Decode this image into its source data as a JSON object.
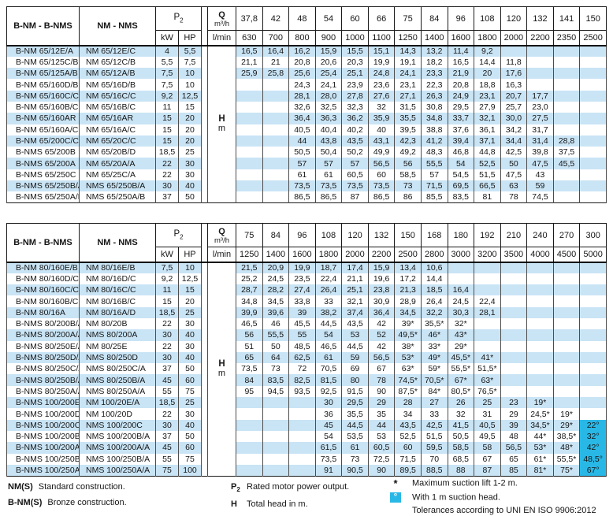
{
  "colors": {
    "row_band": "#c9e4f5",
    "suction_head_highlight": "#29b8e6"
  },
  "tables": [
    {
      "header": {
        "col1": "B-NM - B-NMS",
        "col2": "NM - NMS",
        "p2_main": "P",
        "p2_sub": "2",
        "kw": "kW",
        "hp": "HP",
        "q_label": "Q",
        "q_unit": "m³/h",
        "lmin": "l/min",
        "h_label": "H",
        "h_unit": "m",
        "flow_m3h": [
          "37,8",
          "42",
          "48",
          "54",
          "60",
          "66",
          "75",
          "84",
          "96",
          "108",
          "120",
          "132",
          "141",
          "150"
        ],
        "flow_lmin": [
          "630",
          "700",
          "800",
          "900",
          "1000",
          "1100",
          "1250",
          "1400",
          "1600",
          "1800",
          "2000",
          "2200",
          "2350",
          "2500"
        ]
      },
      "rows": [
        {
          "bnm": "B-NM 65/12E/A",
          "nm": "NM 65/12E/C",
          "kw": "4",
          "hp": "5,5",
          "values": [
            "16,5",
            "16,4",
            "16,2",
            "15,9",
            "15,5",
            "15,1",
            "14,3",
            "13,2",
            "11,4",
            "9,2",
            "",
            "",
            "",
            ""
          ]
        },
        {
          "bnm": "B-NM 65/125C/B",
          "nm": "NM 65/12C/B",
          "kw": "5,5",
          "hp": "7,5",
          "values": [
            "21,1",
            "21",
            "20,8",
            "20,6",
            "20,3",
            "19,9",
            "19,1",
            "18,2",
            "16,5",
            "14,4",
            "11,8",
            "",
            "",
            ""
          ]
        },
        {
          "bnm": "B-NM 65/125A/B",
          "nm": "NM 65/12A/B",
          "kw": "7,5",
          "hp": "10",
          "values": [
            "25,9",
            "25,8",
            "25,6",
            "25,4",
            "25,1",
            "24,8",
            "24,1",
            "23,3",
            "21,9",
            "20",
            "17,6",
            "",
            "",
            ""
          ]
        },
        {
          "bnm": "B-NM 65/160D/B",
          "nm": "NM 65/16D/B",
          "kw": "7,5",
          "hp": "10",
          "values": [
            "",
            "",
            "24,3",
            "24,1",
            "23,9",
            "23,6",
            "23,1",
            "22,3",
            "20,8",
            "18,8",
            "16,3",
            "",
            "",
            ""
          ]
        },
        {
          "bnm": "B-NM 65/160C/C",
          "nm": "NM 65/16C/C",
          "kw": "9,2",
          "hp": "12,5",
          "values": [
            "",
            "",
            "28,1",
            "28,0",
            "27,8",
            "27,6",
            "27,1",
            "26,3",
            "24,9",
            "23,1",
            "20,7",
            "17,7",
            "",
            ""
          ]
        },
        {
          "bnm": "B-NM 65/160B/C",
          "nm": "NM 65/16B/C",
          "kw": "11",
          "hp": "15",
          "values": [
            "",
            "",
            "32,6",
            "32,5",
            "32,3",
            "32",
            "31,5",
            "30,8",
            "29,5",
            "27,9",
            "25,7",
            "23,0",
            "",
            ""
          ]
        },
        {
          "bnm": "B-NM 65/160AR",
          "nm": "NM 65/16AR",
          "kw": "15",
          "hp": "20",
          "values": [
            "",
            "",
            "36,4",
            "36,3",
            "36,2",
            "35,9",
            "35,5",
            "34,8",
            "33,7",
            "32,1",
            "30,0",
            "27,5",
            "",
            ""
          ]
        },
        {
          "bnm": "B-NM 65/160A/C",
          "nm": "NM 65/16A/C",
          "kw": "15",
          "hp": "20",
          "values": [
            "",
            "",
            "40,5",
            "40,4",
            "40,2",
            "40",
            "39,5",
            "38,8",
            "37,6",
            "36,1",
            "34,2",
            "31,7",
            "",
            ""
          ]
        },
        {
          "bnm": "B-NM 65/200C/C",
          "nm": "NM 65/20C/C",
          "kw": "15",
          "hp": "20",
          "values": [
            "",
            "",
            "44",
            "43,8",
            "43,5",
            "43,1",
            "42,3",
            "41,2",
            "39,4",
            "37,1",
            "34,4",
            "31,4",
            "28,8",
            ""
          ]
        },
        {
          "bnm": "B-NMS 65/200B",
          "nm": "NM 65/20B/D",
          "kw": "18,5",
          "hp": "25",
          "values": [
            "",
            "",
            "50,5",
            "50,4",
            "50,2",
            "49,9",
            "49,2",
            "48,3",
            "46,8",
            "44,8",
            "42,5",
            "39,8",
            "37,5",
            ""
          ]
        },
        {
          "bnm": "B-NMS 65/200A",
          "nm": "NM 65/20A/A",
          "kw": "22",
          "hp": "30",
          "values": [
            "",
            "",
            "57",
            "57",
            "57",
            "56,5",
            "56",
            "55,5",
            "54",
            "52,5",
            "50",
            "47,5",
            "45,5",
            ""
          ]
        },
        {
          "bnm": "B-NMS 65/250C",
          "nm": "NM 65/25C/A",
          "kw": "22",
          "hp": "30",
          "values": [
            "",
            "",
            "61",
            "61",
            "60,5",
            "60",
            "58,5",
            "57",
            "54,5",
            "51,5",
            "47,5",
            "43",
            "",
            ""
          ]
        },
        {
          "bnm": "B-NMS 65/250B/A",
          "nm": "NMS 65/250B/A",
          "kw": "30",
          "hp": "40",
          "values": [
            "",
            "",
            "73,5",
            "73,5",
            "73,5",
            "73,5",
            "73",
            "71,5",
            "69,5",
            "66,5",
            "63",
            "59",
            "",
            ""
          ]
        },
        {
          "bnm": "B-NMS 65/250A/B",
          "nm": "NMS 65/250A/B",
          "kw": "37",
          "hp": "50",
          "values": [
            "",
            "",
            "86,5",
            "86,5",
            "87",
            "86,5",
            "86",
            "85,5",
            "83,5",
            "81",
            "78",
            "74,5",
            "",
            ""
          ]
        }
      ]
    },
    {
      "header": {
        "col1": "B-NM - B-NMS",
        "col2": "NM - NMS",
        "p2_main": "P",
        "p2_sub": "2",
        "kw": "kW",
        "hp": "HP",
        "q_label": "Q",
        "q_unit": "m³/h",
        "lmin": "l/min",
        "h_label": "H",
        "h_unit": "m",
        "flow_m3h": [
          "75",
          "84",
          "96",
          "108",
          "120",
          "132",
          "150",
          "168",
          "180",
          "192",
          "210",
          "240",
          "270",
          "300"
        ],
        "flow_lmin": [
          "1250",
          "1400",
          "1600",
          "1800",
          "2000",
          "2200",
          "2500",
          "2800",
          "3000",
          "3200",
          "3500",
          "4000",
          "4500",
          "5000"
        ]
      },
      "rows": [
        {
          "bnm": "B-NM 80/160E/B",
          "nm": "NM 80/16E/B",
          "kw": "7,5",
          "hp": "10",
          "values": [
            "21,5",
            "20,9",
            "19,9",
            "18,7",
            "17,4",
            "15,9",
            "13,4",
            "10,6",
            "",
            "",
            "",
            "",
            "",
            ""
          ]
        },
        {
          "bnm": "B-NM 80/160D/C",
          "nm": "NM 80/16D/C",
          "kw": "9,2",
          "hp": "12,5",
          "values": [
            "25,2",
            "24,5",
            "23,5",
            "22,4",
            "21,1",
            "19,6",
            "17,2",
            "14,4",
            "",
            "",
            "",
            "",
            "",
            ""
          ]
        },
        {
          "bnm": "B-NM 80/160C/C",
          "nm": "NM 80/16C/C",
          "kw": "11",
          "hp": "15",
          "values": [
            "28,7",
            "28,2",
            "27,4",
            "26,4",
            "25,1",
            "23,8",
            "21,3",
            "18,5",
            "16,4",
            "",
            "",
            "",
            "",
            ""
          ]
        },
        {
          "bnm": "B-NM 80/160B/C",
          "nm": "NM 80/16B/C",
          "kw": "15",
          "hp": "20",
          "values": [
            "34,8",
            "34,5",
            "33,8",
            "33",
            "32,1",
            "30,9",
            "28,9",
            "26,4",
            "24,5",
            "22,4",
            "",
            "",
            "",
            ""
          ]
        },
        {
          "bnm": "B-NM 80/16A",
          "nm": "NM 80/16A/D",
          "kw": "18,5",
          "hp": "25",
          "values": [
            "39,9",
            "39,6",
            "39",
            "38,2",
            "37,4",
            "36,4",
            "34,5",
            "32,2",
            "30,3",
            "28,1",
            "",
            "",
            "",
            ""
          ]
        },
        {
          "bnm": "B-NMS 80/200B/A",
          "nm": "NM 80/20B",
          "kw": "22",
          "hp": "30",
          "values": [
            "46,5",
            "46",
            "45,5",
            "44,5",
            "43,5",
            "42",
            "39*",
            "35,5*",
            "32*",
            "",
            "",
            "",
            "",
            ""
          ]
        },
        {
          "bnm": "B-NMS 80/200A/A",
          "nm": "NMS 80/200A",
          "kw": "30",
          "hp": "40",
          "values": [
            "56",
            "55,5",
            "55",
            "54",
            "53",
            "52",
            "49,5*",
            "46*",
            "43*",
            "",
            "",
            "",
            "",
            ""
          ]
        },
        {
          "bnm": "B-NMS 80/250E/A",
          "nm": "NM 80/25E",
          "kw": "22",
          "hp": "30",
          "values": [
            "51",
            "50",
            "48,5",
            "46,5",
            "44,5",
            "42",
            "38*",
            "33*",
            "29*",
            "",
            "",
            "",
            "",
            ""
          ]
        },
        {
          "bnm": "B-NMS 80/250D/A",
          "nm": "NMS 80/250D",
          "kw": "30",
          "hp": "40",
          "values": [
            "65",
            "64",
            "62,5",
            "61",
            "59",
            "56,5",
            "53*",
            "49*",
            "45,5*",
            "41*",
            "",
            "",
            "",
            ""
          ]
        },
        {
          "bnm": "B-NMS 80/250C/A",
          "nm": "NMS 80/250C/A",
          "kw": "37",
          "hp": "50",
          "values": [
            "73,5",
            "73",
            "72",
            "70,5",
            "69",
            "67",
            "63*",
            "59*",
            "55,5*",
            "51,5*",
            "",
            "",
            "",
            ""
          ]
        },
        {
          "bnm": "B-NMS 80/250B/A",
          "nm": "NMS 80/250B/A",
          "kw": "45",
          "hp": "60",
          "values": [
            "84",
            "83,5",
            "82,5",
            "81,5",
            "80",
            "78",
            "74,5*",
            "70,5*",
            "67*",
            "63*",
            "",
            "",
            "",
            ""
          ]
        },
        {
          "bnm": "B-NMS 80/250A/A",
          "nm": "NMS 80/250A/A",
          "kw": "55",
          "hp": "75",
          "values": [
            "95",
            "94,5",
            "93,5",
            "92,5",
            "91,5",
            "90",
            "87,5*",
            "84*",
            "80,5*",
            "76,5*",
            "",
            "",
            "",
            ""
          ]
        },
        {
          "bnm": "B-NMS 100/200E/B",
          "nm": "NM 100/20E/A",
          "kw": "18,5",
          "hp": "25",
          "values": [
            "",
            "",
            "",
            "30",
            "29,5",
            "29",
            "28",
            "27",
            "26",
            "25",
            "23",
            "19*",
            "",
            ""
          ]
        },
        {
          "bnm": "B-NMS 100/200D/A",
          "nm": "NM 100/20D",
          "kw": "22",
          "hp": "30",
          "values": [
            "",
            "",
            "",
            "36",
            "35,5",
            "35",
            "34",
            "33",
            "32",
            "31",
            "29",
            "24,5*",
            "19*",
            ""
          ]
        },
        {
          "bnm": "B-NMS 100/200C/A",
          "nm": "NMS 100/200C",
          "kw": "30",
          "hp": "40",
          "values": [
            "",
            "",
            "",
            "45",
            "44,5",
            "44",
            "43,5",
            "42,5",
            "41,5",
            "40,5",
            "39",
            "34,5*",
            "29*",
            "22°"
          ]
        },
        {
          "bnm": "B-NMS 100/200B/A",
          "nm": "NMS 100/200B/A",
          "kw": "37",
          "hp": "50",
          "values": [
            "",
            "",
            "",
            "54",
            "53,5",
            "53",
            "52,5",
            "51,5",
            "50,5",
            "49,5",
            "48",
            "44*",
            "38,5*",
            "32°"
          ]
        },
        {
          "bnm": "B-NMS 100/200A/A",
          "nm": "NMS 100/200A/A",
          "kw": "45",
          "hp": "60",
          "values": [
            "",
            "",
            "",
            "61,5",
            "61",
            "60,5",
            "60",
            "59,5",
            "58,5",
            "58",
            "56,5",
            "53*",
            "48*",
            "42°"
          ]
        },
        {
          "bnm": "B-NMS 100/250B/A",
          "nm": "NMS 100/250B/A",
          "kw": "55",
          "hp": "75",
          "values": [
            "",
            "",
            "",
            "73,5",
            "73",
            "72,5",
            "71,5",
            "70",
            "68,5",
            "67",
            "65",
            "61*",
            "55,5*",
            "48,5°"
          ]
        },
        {
          "bnm": "B-NMS 100/250A/A",
          "nm": "NMS 100/250A/A",
          "kw": "75",
          "hp": "100",
          "values": [
            "",
            "",
            "",
            "91",
            "90,5",
            "90",
            "89,5",
            "88,5",
            "88",
            "87",
            "85",
            "81*",
            "75*",
            "67°"
          ]
        }
      ]
    }
  ],
  "footnotes": {
    "nms": {
      "term": "NM(S)",
      "text": "Standard construction."
    },
    "bnms": {
      "term": "B-NM(S)",
      "text": "Bronze construction."
    },
    "p2": {
      "term_main": "P",
      "term_sub": "2",
      "text": "Rated motor power output."
    },
    "h": {
      "term": "H",
      "text": "Total head in m."
    },
    "star": {
      "symbol": "*",
      "text": "Maximum suction lift 1-2 m."
    },
    "degree": {
      "symbol": "°",
      "text": "With 1 m suction head."
    },
    "tolerance": "Tolerances according to UNI EN ISO 9906:2012"
  }
}
